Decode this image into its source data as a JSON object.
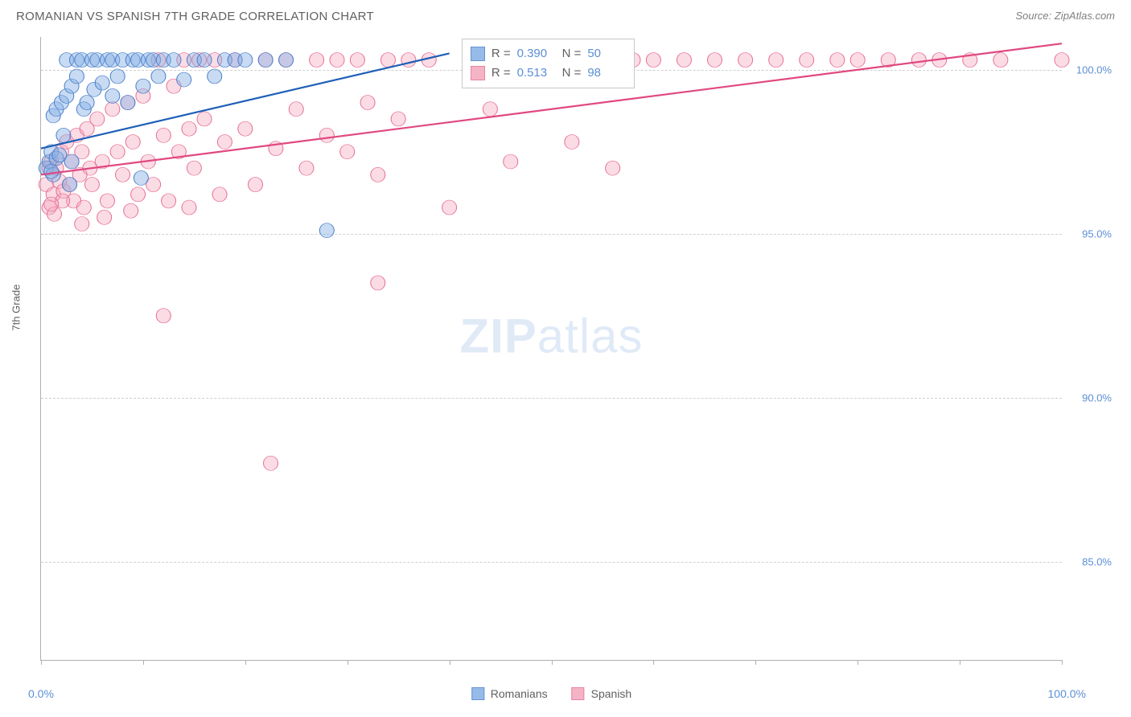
{
  "header": {
    "title": "ROMANIAN VS SPANISH 7TH GRADE CORRELATION CHART",
    "source": "Source: ZipAtlas.com"
  },
  "chart": {
    "type": "scatter",
    "ylabel": "7th Grade",
    "watermark_bold": "ZIP",
    "watermark_light": "atlas",
    "background_color": "#ffffff",
    "grid_color": "#d0d0d0",
    "axis_color": "#b0b0b0",
    "label_color": "#5b8fd6",
    "text_color": "#606060",
    "xlim": [
      0,
      100
    ],
    "ylim": [
      82,
      101
    ],
    "x_left_label": "0.0%",
    "x_right_label": "100.0%",
    "x_tick_positions": [
      0,
      10,
      20,
      30,
      40,
      50,
      60,
      70,
      80,
      90,
      100
    ],
    "y_ticks": [
      {
        "value": 85,
        "label": "85.0%"
      },
      {
        "value": 90,
        "label": "90.0%"
      },
      {
        "value": 95,
        "label": "95.0%"
      },
      {
        "value": 100,
        "label": "100.0%"
      }
    ],
    "stats_box": {
      "left_pct": 41.2,
      "top_pct": 0.2,
      "rows": [
        {
          "color_key": "romanians",
          "r_label": "R =",
          "r_value": "0.390",
          "n_label": "N =",
          "n_value": "50"
        },
        {
          "color_key": "spanish",
          "r_label": "R =",
          "r_value": "0.513",
          "n_label": "N =",
          "n_value": "98"
        }
      ]
    },
    "legend": [
      {
        "key": "romanians",
        "label": "Romanians"
      },
      {
        "key": "spanish",
        "label": "Spanish"
      }
    ],
    "series": {
      "romanians": {
        "fill": "#86b0e5",
        "stroke": "#4a7fc9",
        "fill_opacity": 0.45,
        "line_color": "#1e5fb8",
        "line_width": 2.2,
        "marker_radius": 9,
        "trend": {
          "x1": 0,
          "y1": 97.6,
          "x2": 40,
          "y2": 100.5
        },
        "points": [
          [
            0.5,
            97.0
          ],
          [
            0.8,
            97.2
          ],
          [
            1.0,
            97.5
          ],
          [
            1.2,
            96.8
          ],
          [
            1.2,
            98.6
          ],
          [
            1.5,
            97.3
          ],
          [
            1.5,
            98.8
          ],
          [
            1.8,
            97.4
          ],
          [
            2.0,
            99.0
          ],
          [
            2.2,
            98.0
          ],
          [
            2.5,
            99.2
          ],
          [
            2.5,
            100.3
          ],
          [
            3.0,
            99.5
          ],
          [
            3.0,
            97.2
          ],
          [
            3.5,
            99.8
          ],
          [
            3.5,
            100.3
          ],
          [
            4.0,
            100.3
          ],
          [
            4.2,
            98.8
          ],
          [
            4.5,
            99.0
          ],
          [
            5.0,
            100.3
          ],
          [
            5.2,
            99.4
          ],
          [
            5.5,
            100.3
          ],
          [
            6.0,
            99.6
          ],
          [
            6.5,
            100.3
          ],
          [
            7.0,
            99.2
          ],
          [
            7.0,
            100.3
          ],
          [
            7.5,
            99.8
          ],
          [
            8.0,
            100.3
          ],
          [
            8.5,
            99.0
          ],
          [
            9.0,
            100.3
          ],
          [
            9.5,
            100.3
          ],
          [
            10.0,
            99.5
          ],
          [
            10.5,
            100.3
          ],
          [
            11.0,
            100.3
          ],
          [
            11.5,
            99.8
          ],
          [
            12.0,
            100.3
          ],
          [
            13.0,
            100.3
          ],
          [
            14.0,
            99.7
          ],
          [
            15.0,
            100.3
          ],
          [
            16.0,
            100.3
          ],
          [
            17.0,
            99.8
          ],
          [
            18.0,
            100.3
          ],
          [
            19.0,
            100.3
          ],
          [
            20.0,
            100.3
          ],
          [
            22.0,
            100.3
          ],
          [
            24.0,
            100.3
          ],
          [
            9.8,
            96.7
          ],
          [
            28.0,
            95.1
          ],
          [
            2.8,
            96.5
          ],
          [
            1.0,
            96.9
          ]
        ]
      },
      "spanish": {
        "fill": "#f4a8bd",
        "stroke": "#e56f94",
        "fill_opacity": 0.4,
        "line_color": "#e04880",
        "line_width": 2.2,
        "marker_radius": 9,
        "trend": {
          "x1": 0,
          "y1": 96.8,
          "x2": 100,
          "y2": 100.8
        },
        "points": [
          [
            0.5,
            96.5
          ],
          [
            0.8,
            97.0
          ],
          [
            1.0,
            97.2
          ],
          [
            1.2,
            96.2
          ],
          [
            1.5,
            97.0
          ],
          [
            1.8,
            96.6
          ],
          [
            2.0,
            97.5
          ],
          [
            2.2,
            96.3
          ],
          [
            2.5,
            97.8
          ],
          [
            2.8,
            96.5
          ],
          [
            3.0,
            97.2
          ],
          [
            3.2,
            96.0
          ],
          [
            3.5,
            98.0
          ],
          [
            3.8,
            96.8
          ],
          [
            4.0,
            97.5
          ],
          [
            4.2,
            95.8
          ],
          [
            4.5,
            98.2
          ],
          [
            4.8,
            97.0
          ],
          [
            5.0,
            96.5
          ],
          [
            5.5,
            98.5
          ],
          [
            6.0,
            97.2
          ],
          [
            6.5,
            96.0
          ],
          [
            7.0,
            98.8
          ],
          [
            7.5,
            97.5
          ],
          [
            8.0,
            96.8
          ],
          [
            8.5,
            99.0
          ],
          [
            9.0,
            97.8
          ],
          [
            9.5,
            96.2
          ],
          [
            10.0,
            99.2
          ],
          [
            10.5,
            97.2
          ],
          [
            11.0,
            96.5
          ],
          [
            11.5,
            100.3
          ],
          [
            12.0,
            98.0
          ],
          [
            12.5,
            96.0
          ],
          [
            13.0,
            99.5
          ],
          [
            13.5,
            97.5
          ],
          [
            14.0,
            100.3
          ],
          [
            14.5,
            98.2
          ],
          [
            15.0,
            97.0
          ],
          [
            15.5,
            100.3
          ],
          [
            16.0,
            98.5
          ],
          [
            17.0,
            100.3
          ],
          [
            18.0,
            97.8
          ],
          [
            19.0,
            100.3
          ],
          [
            20.0,
            98.2
          ],
          [
            21.0,
            96.5
          ],
          [
            22.0,
            100.3
          ],
          [
            23.0,
            97.6
          ],
          [
            24.0,
            100.3
          ],
          [
            25.0,
            98.8
          ],
          [
            26.0,
            97.0
          ],
          [
            27.0,
            100.3
          ],
          [
            28.0,
            98.0
          ],
          [
            29.0,
            100.3
          ],
          [
            30.0,
            97.5
          ],
          [
            31.0,
            100.3
          ],
          [
            32.0,
            99.0
          ],
          [
            33.0,
            96.8
          ],
          [
            34.0,
            100.3
          ],
          [
            35.0,
            98.5
          ],
          [
            36.0,
            100.3
          ],
          [
            38.0,
            100.3
          ],
          [
            40.0,
            95.8
          ],
          [
            42.0,
            100.3
          ],
          [
            44.0,
            98.8
          ],
          [
            46.0,
            97.2
          ],
          [
            48.0,
            100.3
          ],
          [
            50.0,
            100.3
          ],
          [
            52.0,
            97.8
          ],
          [
            54.0,
            100.3
          ],
          [
            56.0,
            97.0
          ],
          [
            58.0,
            100.3
          ],
          [
            60.0,
            100.3
          ],
          [
            63.0,
            100.3
          ],
          [
            66.0,
            100.3
          ],
          [
            69.0,
            100.3
          ],
          [
            72.0,
            100.3
          ],
          [
            75.0,
            100.3
          ],
          [
            78.0,
            100.3
          ],
          [
            80.0,
            100.3
          ],
          [
            83.0,
            100.3
          ],
          [
            86.0,
            100.3
          ],
          [
            88.0,
            100.3
          ],
          [
            91.0,
            100.3
          ],
          [
            94.0,
            100.3
          ],
          [
            100.0,
            100.3
          ],
          [
            0.8,
            95.8
          ],
          [
            1.3,
            95.6
          ],
          [
            2.1,
            96.0
          ],
          [
            12.0,
            92.5
          ],
          [
            22.5,
            88.0
          ],
          [
            33.0,
            93.5
          ],
          [
            4.0,
            95.3
          ],
          [
            6.2,
            95.5
          ],
          [
            8.8,
            95.7
          ],
          [
            14.5,
            95.8
          ],
          [
            17.5,
            96.2
          ],
          [
            1.0,
            95.9
          ]
        ]
      }
    }
  }
}
